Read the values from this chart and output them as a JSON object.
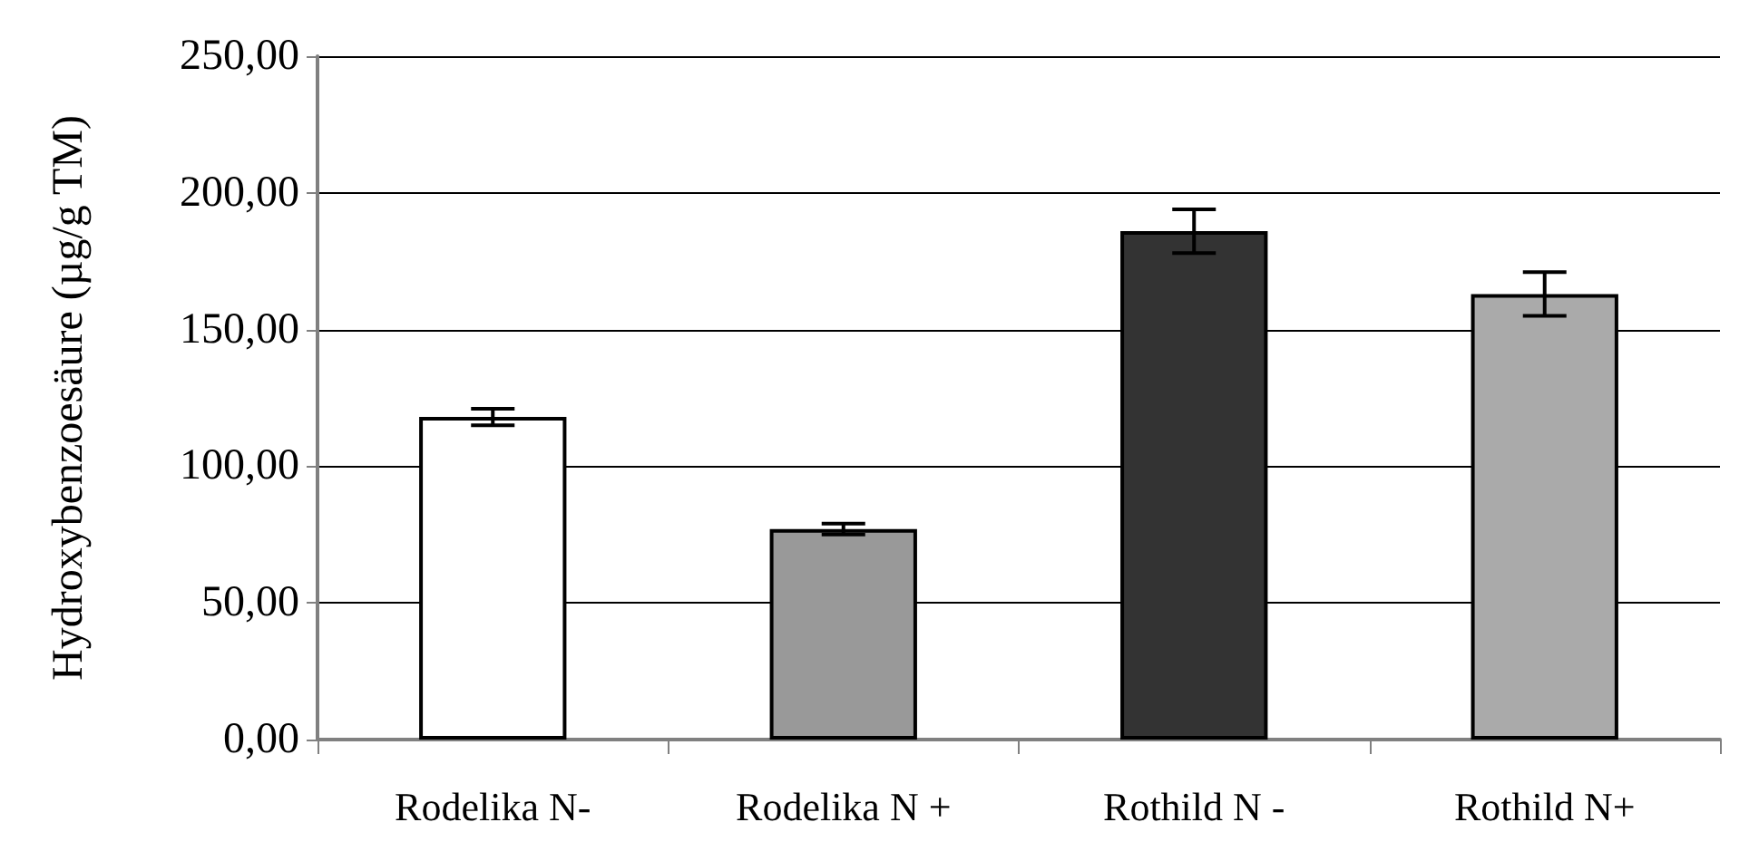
{
  "chart_data": {
    "type": "bar",
    "ylabel": "Hydroxybenzoesäure (µg/g TM)",
    "categories": [
      "Rodelika N-",
      "Rodelika N +",
      "Rothild N -",
      "Rothild N+"
    ],
    "values": [
      118,
      77,
      186,
      163
    ],
    "errors": [
      3,
      2,
      8,
      8
    ],
    "colors": [
      "#ffffff",
      "#999999",
      "#333333",
      "#aaaaaa"
    ],
    "ylim": [
      0,
      250
    ],
    "yticks": [
      {
        "value": 0,
        "label": "0,00"
      },
      {
        "value": 50,
        "label": "50,00"
      },
      {
        "value": 100,
        "label": "100,00"
      },
      {
        "value": 150,
        "label": "150,00"
      },
      {
        "value": 200,
        "label": "200,00"
      },
      {
        "value": 250,
        "label": "250,00"
      }
    ],
    "grid": "y"
  }
}
